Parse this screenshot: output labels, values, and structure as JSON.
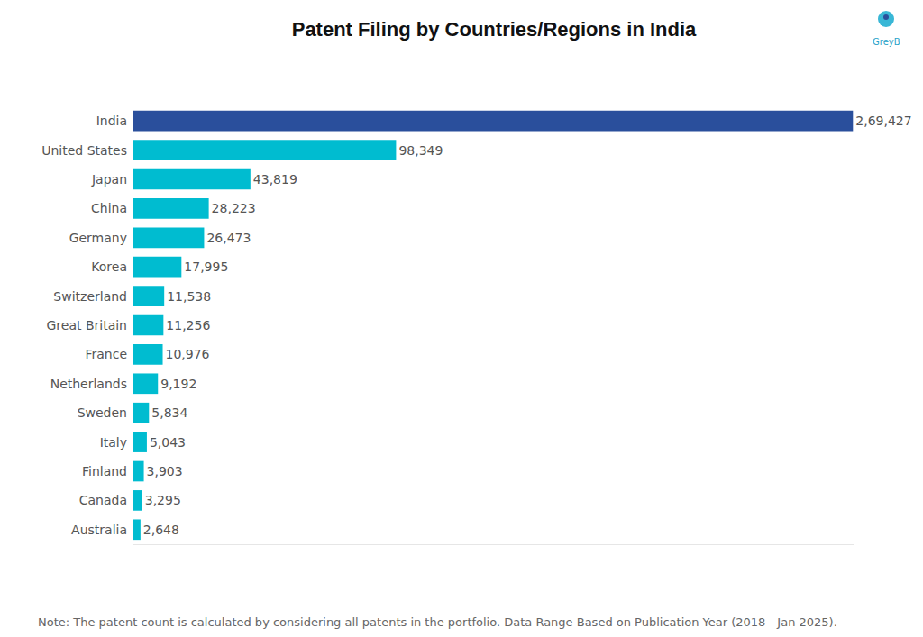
{
  "chart_data": {
    "type": "bar",
    "title": "Patent Filing by Countries/Regions in India",
    "orientation": "horizontal",
    "categories": [
      "India",
      "United States",
      "Japan",
      "China",
      "Germany",
      "Korea",
      "Switzerland",
      "Great Britain",
      "France",
      "Netherlands",
      "Sweden",
      "Italy",
      "Finland",
      "Canada",
      "Australia"
    ],
    "values": [
      269427,
      98349,
      43819,
      28223,
      26473,
      17995,
      11538,
      11256,
      10976,
      9192,
      5834,
      5043,
      3903,
      3295,
      2648
    ],
    "value_labels": [
      "2,69,427",
      "98,349",
      "43,819",
      "28,223",
      "26,473",
      "17,995",
      "11,538",
      "11,256",
      "10,976",
      "9,192",
      "5,834",
      "5,043",
      "3,903",
      "3,295",
      "2,648"
    ],
    "colors": [
      "#2a4f9c",
      "#00bcd0",
      "#00bcd0",
      "#00bcd0",
      "#00bcd0",
      "#00bcd0",
      "#00bcd0",
      "#00bcd0",
      "#00bcd0",
      "#00bcd0",
      "#00bcd0",
      "#00bcd0",
      "#00bcd0",
      "#00bcd0",
      "#00bcd0"
    ],
    "data_labels": true,
    "tick_labels": "y",
    "grid": false,
    "xlim": [
      0,
      270000
    ],
    "xticks": [],
    "annotations": [
      "GreyB",
      "Note: The patent count is calculated by considering all patents in the portfolio. Data Range Based on Publication Year (2018 - Jan 2025)."
    ]
  }
}
